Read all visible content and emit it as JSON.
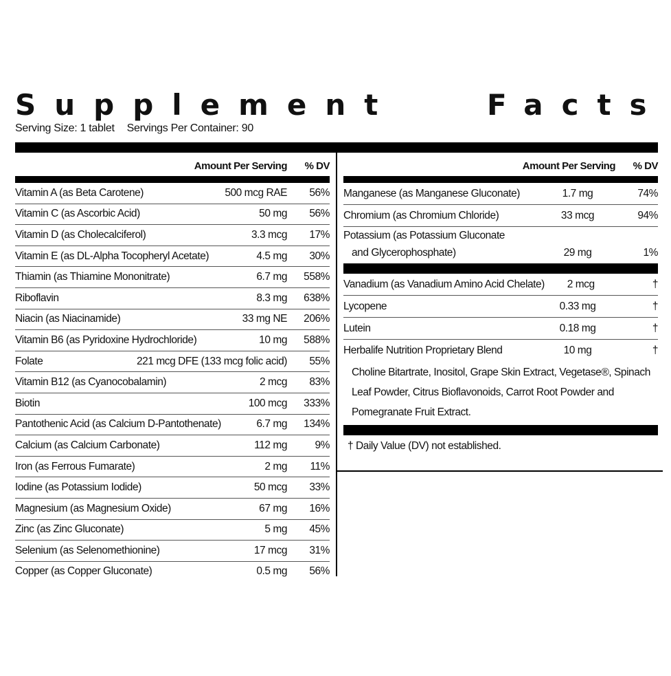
{
  "title": "Supplement Facts",
  "serving_size": "Serving Size: 1 tablet",
  "servings_per_container": "Servings Per Container: 90",
  "header": {
    "amount": "Amount Per Serving",
    "dv": "% DV"
  },
  "left_rows": [
    {
      "name": "Vitamin A (as Beta Carotene)",
      "amount": "500 mcg RAE",
      "dv": "56%"
    },
    {
      "name": "Vitamin C (as Ascorbic Acid)",
      "amount": "50 mg",
      "dv": "56%"
    },
    {
      "name": "Vitamin D (as Cholecalciferol)",
      "amount": "3.3 mcg",
      "dv": "17%"
    },
    {
      "name": "Vitamin E (as DL-Alpha Tocopheryl Acetate)",
      "amount": "4.5 mg",
      "dv": "30%"
    },
    {
      "name": "Thiamin (as Thiamine Mononitrate)",
      "amount": "6.7 mg",
      "dv": "558%"
    },
    {
      "name": "Riboflavin",
      "amount": "8.3 mg",
      "dv": "638%"
    },
    {
      "name": "Niacin (as Niacinamide)",
      "amount": "33 mg NE",
      "dv": "206%"
    },
    {
      "name": "Vitamin B6 (as Pyridoxine Hydrochloride)",
      "amount": "10 mg",
      "dv": "588%"
    },
    {
      "name": "Folate",
      "amount": "221 mcg DFE (133 mcg folic acid)",
      "dv": "55%"
    },
    {
      "name": "Vitamin B12 (as Cyanocobalamin)",
      "amount": "2 mcg",
      "dv": "83%"
    },
    {
      "name": "Biotin",
      "amount": "100 mcg",
      "dv": "333%"
    },
    {
      "name": "Pantothenic Acid (as Calcium D-Pantothenate)",
      "amount": "6.7 mg",
      "dv": "134%"
    },
    {
      "name": "Calcium (as Calcium Carbonate)",
      "amount": "112 mg",
      "dv": "9%"
    },
    {
      "name": "Iron (as Ferrous Fumarate)",
      "amount": "2 mg",
      "dv": "11%"
    },
    {
      "name": "Iodine (as Potassium Iodide)",
      "amount": "50 mcg",
      "dv": "33%"
    },
    {
      "name": "Magnesium (as Magnesium Oxide)",
      "amount": "67 mg",
      "dv": "16%"
    },
    {
      "name": "Zinc (as Zinc Gluconate)",
      "amount": "5 mg",
      "dv": "45%"
    },
    {
      "name": "Selenium (as Selenomethionine)",
      "amount": "17 mcg",
      "dv": "31%"
    },
    {
      "name": "Copper (as Copper Gluconate)",
      "amount": "0.5 mg",
      "dv": "56%"
    }
  ],
  "right_rows_a": [
    {
      "name": "Manganese (as Manganese Gluconate)",
      "amount": "1.7 mg",
      "dv": "74%"
    },
    {
      "name": "Chromium (as Chromium Chloride)",
      "amount": "33 mcg",
      "dv": "94%"
    }
  ],
  "potassium": {
    "line1": "Potassium (as Potassium Gluconate",
    "line2": "and Glycerophosphate)",
    "amount": "29 mg",
    "dv": "1%"
  },
  "right_rows_b": [
    {
      "name": "Vanadium (as Vanadium Amino Acid Chelate)",
      "amount": "2 mcg",
      "dv": "†"
    },
    {
      "name": "Lycopene",
      "amount": "0.33 mg",
      "dv": "†"
    },
    {
      "name": "Lutein",
      "amount": "0.18 mg",
      "dv": "†"
    },
    {
      "name": "Herbalife Nutrition Proprietary Blend",
      "amount": "10 mg",
      "dv": "†"
    }
  ],
  "blend_ingredients": "Choline Bitartrate, Inositol, Grape Skin Extract, Vegetase®, Spinach Leaf Powder, Citrus Bioflavonoids, Carrot Root Powder and Pomegranate Fruit Extract.",
  "footnote": "† Daily Value (DV) not established."
}
